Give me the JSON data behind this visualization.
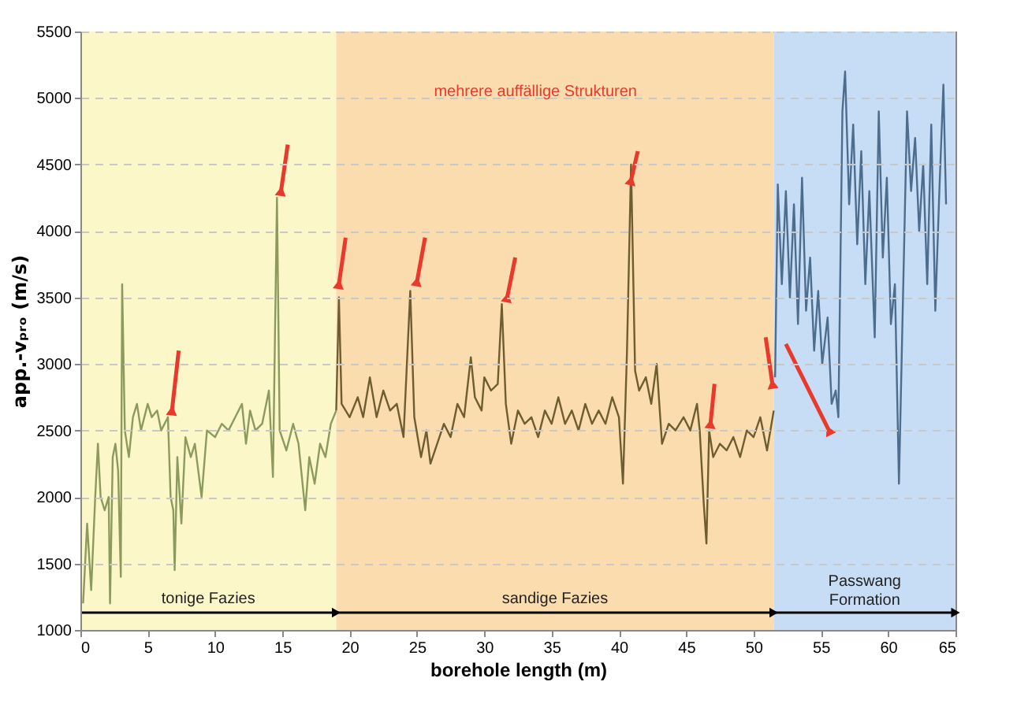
{
  "chart_data": {
    "type": "line",
    "xlabel": "borehole length (m)",
    "ylabel": "app.-vₚᵣₒ (m/s)",
    "xlim": [
      0,
      65
    ],
    "xticks": [
      0,
      5,
      10,
      15,
      20,
      25,
      30,
      35,
      40,
      45,
      50,
      55,
      60,
      65
    ],
    "ylim": [
      1000,
      5500
    ],
    "yticks": [
      1000,
      1500,
      2000,
      2500,
      3000,
      3500,
      4000,
      4500,
      5000,
      5500
    ],
    "grid": "y",
    "line_style": "solid",
    "marker": "none",
    "annotations": [
      "mehrere auffällige Strukturen"
    ],
    "bands": [
      {
        "axis": "x",
        "from": 0,
        "to": 19,
        "label": "tonige Fazies",
        "color": "#fbf7c9"
      },
      {
        "axis": "x",
        "from": 19,
        "to": 51.5,
        "label": "sandige Fazies",
        "color": "#fbdcae"
      },
      {
        "axis": "x",
        "from": 51.5,
        "to": 65,
        "label": "Passwang\nFormation",
        "color": "#c7ddf6"
      }
    ],
    "series": [
      {
        "color": "#8c9a5e",
        "x": [
          0.2,
          0.5,
          0.8,
          1.1,
          1.3,
          1.5,
          1.8,
          2.1,
          2.2,
          2.4,
          2.6,
          2.8,
          3.0,
          3.1,
          3.3,
          3.6,
          3.9,
          4.2,
          4.5,
          5.0,
          5.3,
          5.7,
          6.0,
          6.5,
          6.7,
          6.9,
          7.0,
          7.2,
          7.5,
          7.8,
          8.2,
          8.5,
          9.0,
          9.4,
          10,
          10.5,
          11,
          11.5,
          12,
          12.3,
          12.6,
          13,
          13.5,
          14,
          14.3,
          14.6,
          14.8,
          15.3,
          15.8,
          16.2,
          16.7,
          17,
          17.4,
          17.8,
          18.2,
          18.6,
          19
        ],
        "values": [
          1200,
          1800,
          1300,
          2000,
          2400,
          2000,
          1900,
          2000,
          1200,
          2300,
          2400,
          2200,
          1400,
          3600,
          2500,
          2300,
          2600,
          2700,
          2500,
          2700,
          2600,
          2650,
          2500,
          2600,
          2000,
          1900,
          1450,
          2300,
          1800,
          2450,
          2300,
          2400,
          2000,
          2500,
          2450,
          2550,
          2500,
          2600,
          2700,
          2400,
          2650,
          2500,
          2550,
          2800,
          2150,
          4250,
          2500,
          2350,
          2550,
          2400,
          1900,
          2300,
          2100,
          2400,
          2300,
          2550,
          2650
        ]
      },
      {
        "color": "#6e5d30",
        "x": [
          19,
          19.2,
          19.4,
          20,
          20.6,
          21,
          21.5,
          22,
          22.5,
          23,
          23.5,
          24,
          24.5,
          24.8,
          25.3,
          25.7,
          26,
          26.5,
          27,
          27.5,
          28,
          28.5,
          29,
          29.3,
          29.8,
          30,
          30.5,
          31,
          31.3,
          31.6,
          32,
          32.5,
          33,
          33.5,
          34,
          34.5,
          35,
          35.5,
          36,
          36.5,
          37,
          37.5,
          38,
          38.5,
          39,
          39.5,
          40,
          40.3,
          40.6,
          40.9,
          41.2,
          41.5,
          42,
          42.4,
          42.8,
          43.2,
          43.7,
          44.2,
          44.8,
          45.3,
          45.8,
          46,
          46.3,
          46.5,
          46.7,
          47,
          47.5,
          48,
          48.5,
          49,
          49.5,
          50,
          50.5,
          51,
          51.5
        ],
        "values": [
          2650,
          3500,
          2700,
          2600,
          2750,
          2600,
          2900,
          2600,
          2800,
          2650,
          2700,
          2450,
          3550,
          2600,
          2300,
          2500,
          2250,
          2400,
          2550,
          2450,
          2700,
          2600,
          3050,
          2750,
          2650,
          2900,
          2800,
          2850,
          3450,
          2700,
          2400,
          2650,
          2550,
          2600,
          2450,
          2650,
          2550,
          2750,
          2550,
          2650,
          2500,
          2700,
          2550,
          2650,
          2550,
          2750,
          2600,
          2100,
          3100,
          4500,
          2950,
          2800,
          2900,
          2700,
          3000,
          2400,
          2550,
          2500,
          2600,
          2500,
          2700,
          2500,
          1950,
          1650,
          2500,
          2300,
          2400,
          2350,
          2450,
          2300,
          2500,
          2450,
          2600,
          2350,
          2650
        ]
      },
      {
        "color": "#4d6d8e",
        "x": [
          51.6,
          51.8,
          52.1,
          52.4,
          52.7,
          53,
          53.3,
          53.6,
          53.9,
          54.2,
          54.5,
          54.8,
          55.1,
          55.5,
          55.8,
          56.1,
          56.3,
          56.6,
          56.8,
          57.1,
          57.4,
          57.7,
          58,
          58.3,
          58.6,
          59,
          59.3,
          59.6,
          59.9,
          60.2,
          60.5,
          60.8,
          61.1,
          61.4,
          61.7,
          62,
          62.3,
          62.6,
          62.9,
          63.2,
          63.5,
          63.8,
          64.1,
          64.3
        ],
        "values": [
          2900,
          4350,
          3600,
          4300,
          3500,
          4200,
          3300,
          4400,
          3400,
          3800,
          3100,
          3550,
          3000,
          3350,
          2700,
          2800,
          2600,
          4900,
          5200,
          4200,
          4800,
          3900,
          4600,
          3600,
          4300,
          3200,
          4900,
          3800,
          4400,
          3300,
          3600,
          2100,
          3500,
          4900,
          4300,
          4700,
          4000,
          4500,
          3600,
          4800,
          3400,
          4300,
          5100,
          4200
        ]
      }
    ]
  }
}
